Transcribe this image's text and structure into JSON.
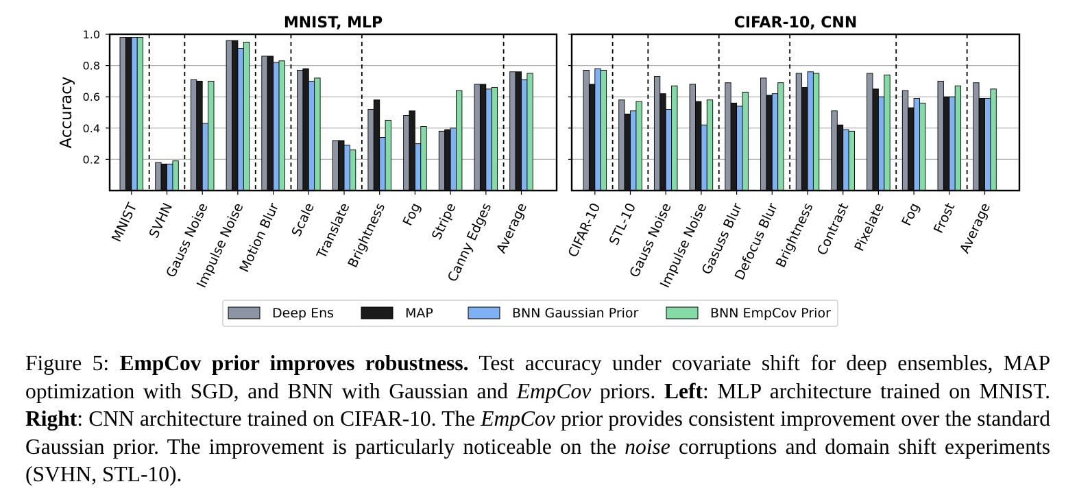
{
  "chart_data": [
    {
      "type": "bar",
      "title": "MNIST, MLP",
      "ylabel": "Accuracy",
      "xlabel": "",
      "ylim": [
        0,
        1.0
      ],
      "yticks": [
        "0.2",
        "0.4",
        "0.6",
        "0.8",
        "1.0"
      ],
      "grid": "horizontal",
      "groups": [
        [
          "MNIST"
        ],
        [
          "SVHN"
        ],
        [
          "Gauss Noise",
          "Impulse Noise"
        ],
        [
          "Motion Blur"
        ],
        [
          "Scale",
          "Translate"
        ],
        [
          "Brightness",
          "Fog",
          "Stripe",
          "Canny Edges"
        ],
        [
          "Average"
        ]
      ],
      "categories": [
        "MNIST",
        "SVHN",
        "Gauss Noise",
        "Impulse Noise",
        "Motion Blur",
        "Scale",
        "Translate",
        "Brightness",
        "Fog",
        "Stripe",
        "Canny Edges",
        "Average"
      ],
      "series": [
        {
          "name": "Deep Ens",
          "values": [
            0.98,
            0.18,
            0.71,
            0.96,
            0.86,
            0.77,
            0.32,
            0.52,
            0.48,
            0.38,
            0.68,
            0.76
          ]
        },
        {
          "name": "MAP",
          "values": [
            0.98,
            0.17,
            0.7,
            0.96,
            0.86,
            0.78,
            0.32,
            0.58,
            0.51,
            0.39,
            0.68,
            0.76
          ]
        },
        {
          "name": "BNN Gaussian Prior",
          "values": [
            0.98,
            0.17,
            0.43,
            0.91,
            0.82,
            0.7,
            0.29,
            0.34,
            0.3,
            0.4,
            0.65,
            0.71
          ]
        },
        {
          "name": "BNN EmpCov Prior",
          "values": [
            0.98,
            0.19,
            0.7,
            0.95,
            0.83,
            0.72,
            0.26,
            0.45,
            0.41,
            0.64,
            0.66,
            0.75
          ]
        }
      ]
    },
    {
      "type": "bar",
      "title": "CIFAR-10, CNN",
      "ylabel": "",
      "xlabel": "",
      "ylim": [
        0,
        1.0
      ],
      "grid": "horizontal",
      "groups": [
        [
          "CIFAR-10"
        ],
        [
          "STL-10"
        ],
        [
          "Gauss Noise",
          "Impulse Noise"
        ],
        [
          "Gasuss Blur",
          "Defocus Blur"
        ],
        [
          "Brightness",
          "Contrast",
          "Pixelate"
        ],
        [
          "Fog",
          "Frost"
        ],
        [
          "Average"
        ]
      ],
      "categories": [
        "CIFAR-10",
        "STL-10",
        "Gauss Noise",
        "Impulse Noise",
        "Gasuss Blur",
        "Defocus Blur",
        "Brightness",
        "Contrast",
        "Pixelate",
        "Fog",
        "Frost",
        "Average"
      ],
      "series": [
        {
          "name": "Deep Ens",
          "values": [
            0.77,
            0.58,
            0.73,
            0.68,
            0.69,
            0.72,
            0.75,
            0.51,
            0.75,
            0.64,
            0.7,
            0.69
          ]
        },
        {
          "name": "MAP",
          "values": [
            0.68,
            0.49,
            0.62,
            0.57,
            0.56,
            0.61,
            0.66,
            0.42,
            0.65,
            0.53,
            0.6,
            0.59
          ]
        },
        {
          "name": "BNN Gaussian Prior",
          "values": [
            0.78,
            0.51,
            0.52,
            0.42,
            0.54,
            0.62,
            0.76,
            0.39,
            0.6,
            0.59,
            0.6,
            0.59
          ]
        },
        {
          "name": "BNN EmpCov Prior",
          "values": [
            0.77,
            0.57,
            0.67,
            0.58,
            0.63,
            0.69,
            0.75,
            0.38,
            0.74,
            0.56,
            0.67,
            0.65
          ]
        }
      ]
    }
  ],
  "series_colors": [
    "#8d94a3",
    "#1b1b1b",
    "#7fb2f5",
    "#84dba6"
  ],
  "caption": {
    "figure_label": "Figure 5:",
    "bold_title": "EmpCov prior improves robustness.",
    "text_1": " Test accuracy under covariate shift for deep ensembles, MAP optimization with SGD, and BNN with Gaussian and ",
    "italic_1": "EmpCov",
    "text_2": " priors. ",
    "bold_left": "Left",
    "text_3": ": MLP architecture trained on MNIST. ",
    "bold_right": "Right",
    "text_4": ": CNN architecture trained on CIFAR-10. The ",
    "italic_2": "EmpCov",
    "text_5": " prior provides consistent improvement over the standard Gaussian prior. The improvement is particularly noticeable on the ",
    "italic_3": "noise",
    "text_6": " corruptions and domain shift experiments (SVHN, STL-10)."
  }
}
